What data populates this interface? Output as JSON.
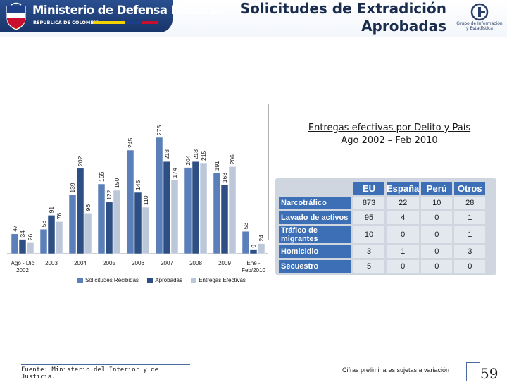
{
  "header": {
    "ministry": "Ministerio de Defensa Nacional",
    "republic": "REPUBLICA DE COLOMBIA",
    "title_line1": "Solicitudes de Extradición",
    "title_line2": "Aprobadas",
    "gi_line1": "Grupo de Información",
    "gi_line2": "y Estadística",
    "flag_colors": [
      "#f5d100",
      "#1d3f8a",
      "#c8102e"
    ]
  },
  "chart_data": {
    "type": "bar",
    "categories": [
      [
        "Ago - Dic",
        "2002"
      ],
      [
        "2003"
      ],
      [
        "2004"
      ],
      [
        "2005"
      ],
      [
        "2006"
      ],
      [
        "2007"
      ],
      [
        "2008"
      ],
      [
        "2009"
      ],
      [
        "Ene -",
        "Feb/2010"
      ]
    ],
    "series": [
      {
        "name": "Solicitudes Recibidas",
        "color": "#5b80b9",
        "values": [
          47,
          58,
          139,
          165,
          245,
          275,
          204,
          191,
          53
        ]
      },
      {
        "name": "Aprobadas",
        "color": "#2d4f84",
        "values": [
          34,
          91,
          202,
          122,
          145,
          218,
          218,
          163,
          9
        ]
      },
      {
        "name": "Entregas Efectivas",
        "color": "#bcc8d9",
        "values": [
          26,
          76,
          96,
          150,
          110,
          174,
          215,
          206,
          24
        ]
      }
    ],
    "ylim": [
      0,
      300
    ]
  },
  "table": {
    "title_line1": "Entregas efectivas por Delito y País",
    "title_line2": "Ago 2002 – Feb 2010",
    "headers": [
      "EU",
      "España",
      "Perú",
      "Otros"
    ],
    "rows": [
      {
        "label": "Narcotráfico",
        "values": [
          "873",
          "22",
          "10",
          "28"
        ]
      },
      {
        "label": "Lavado de activos",
        "values": [
          "95",
          "4",
          "0",
          "1"
        ]
      },
      {
        "label": "Tráfico de migrantes",
        "values": [
          "10",
          "0",
          "0",
          "1"
        ]
      },
      {
        "label": "Homicidio",
        "values": [
          "3",
          "1",
          "0",
          "3"
        ]
      },
      {
        "label": "Secuestro",
        "values": [
          "5",
          "0",
          "0",
          "0"
        ]
      }
    ]
  },
  "footer": {
    "source": "Fuente: Ministerio del Interior y de Justicia.",
    "preliminary": "Cifras preliminares sujetas a variación",
    "page": "59"
  }
}
